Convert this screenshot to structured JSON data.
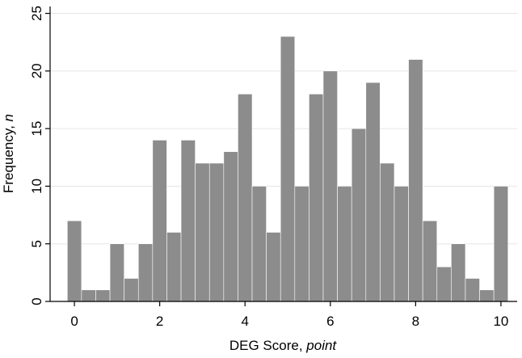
{
  "chart_data": {
    "type": "histogram",
    "xlabel": "DEG Score,",
    "xlabel_unit": "point",
    "ylabel": "Frequency,",
    "ylabel_unit": "n",
    "bins": [
      -0.1667,
      0.1667,
      0.5,
      0.8333,
      1.1667,
      1.5,
      1.8333,
      2.1667,
      2.5,
      2.8333,
      3.1667,
      3.5,
      3.8333,
      4.1667,
      4.5,
      4.8333,
      5.1667,
      5.5,
      5.8333,
      6.1667,
      6.5,
      6.8333,
      7.1667,
      7.5,
      7.8333,
      8.1667,
      8.5,
      8.8333,
      9.1667,
      9.5,
      9.8333,
      10.1667
    ],
    "values": [
      7,
      1,
      1,
      5,
      2,
      5,
      14,
      6,
      14,
      12,
      12,
      13,
      18,
      10,
      6,
      23,
      10,
      18,
      20,
      10,
      15,
      19,
      12,
      10,
      21,
      7,
      3,
      5,
      2,
      1,
      10
    ],
    "color": "#8c8c8c",
    "xlim": [
      -0.57,
      10.38
    ],
    "xticks": [
      0,
      2,
      4,
      6,
      8,
      10
    ],
    "ylim": [
      0,
      25.6
    ],
    "yticks": [
      0,
      5,
      10,
      15,
      20,
      25
    ],
    "grid": true
  }
}
